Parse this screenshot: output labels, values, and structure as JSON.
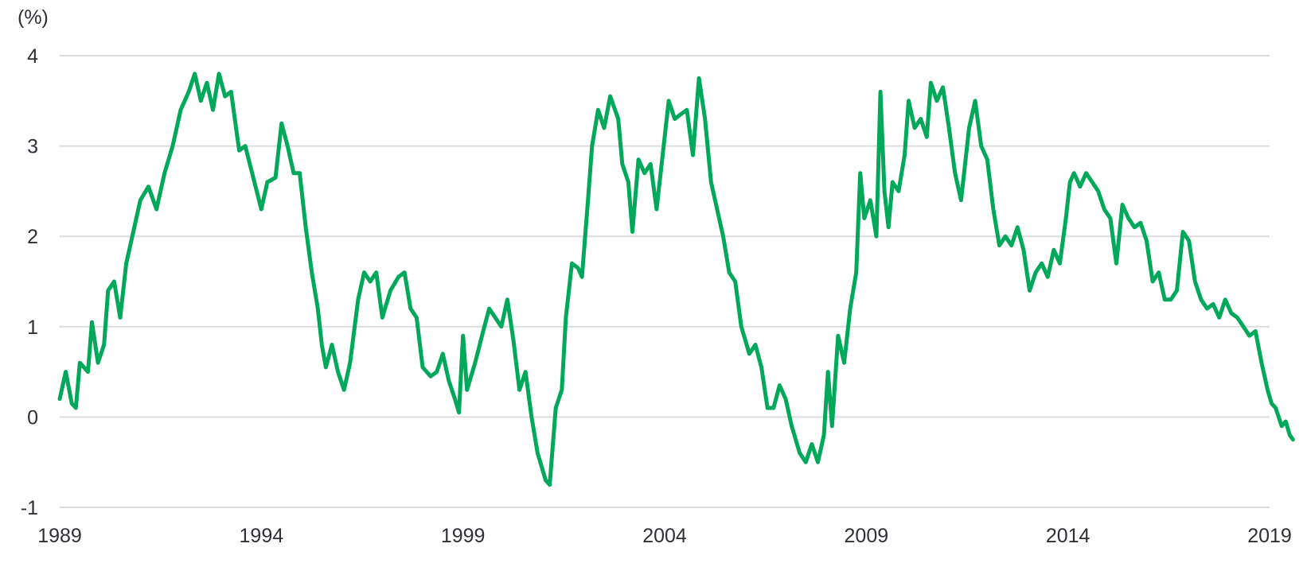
{
  "chart_data": {
    "type": "line",
    "title": "",
    "xlabel": "",
    "ylabel": "(%)",
    "xlim": [
      1989,
      2019
    ],
    "ylim": [
      -1,
      4
    ],
    "x_ticks": [
      1989,
      1994,
      1999,
      2004,
      2009,
      2014,
      2019
    ],
    "x_tick_labels": [
      "1989",
      "1994",
      "1999",
      "2004",
      "2009",
      "2014",
      "2019"
    ],
    "y_ticks": [
      -1,
      0,
      1,
      2,
      3,
      4
    ],
    "y_tick_labels": [
      "-1",
      "0",
      "1",
      "2",
      "3",
      "4"
    ],
    "grid": true,
    "legend": "none",
    "series": [
      {
        "color": "#00a85a",
        "points": [
          [
            1989.0,
            0.2
          ],
          [
            1989.15,
            0.5
          ],
          [
            1989.3,
            0.15
          ],
          [
            1989.4,
            0.1
          ],
          [
            1989.5,
            0.6
          ],
          [
            1989.7,
            0.5
          ],
          [
            1989.8,
            1.05
          ],
          [
            1989.95,
            0.6
          ],
          [
            1990.1,
            0.8
          ],
          [
            1990.2,
            1.4
          ],
          [
            1990.35,
            1.5
          ],
          [
            1990.5,
            1.1
          ],
          [
            1990.65,
            1.7
          ],
          [
            1990.8,
            2.0
          ],
          [
            1991.0,
            2.4
          ],
          [
            1991.2,
            2.55
          ],
          [
            1991.4,
            2.3
          ],
          [
            1991.6,
            2.7
          ],
          [
            1991.8,
            3.0
          ],
          [
            1992.0,
            3.4
          ],
          [
            1992.2,
            3.6
          ],
          [
            1992.35,
            3.8
          ],
          [
            1992.5,
            3.5
          ],
          [
            1992.65,
            3.7
          ],
          [
            1992.8,
            3.4
          ],
          [
            1992.95,
            3.8
          ],
          [
            1993.1,
            3.55
          ],
          [
            1993.25,
            3.6
          ],
          [
            1993.45,
            2.95
          ],
          [
            1993.6,
            3.0
          ],
          [
            1993.8,
            2.65
          ],
          [
            1994.0,
            2.3
          ],
          [
            1994.15,
            2.6
          ],
          [
            1994.35,
            2.65
          ],
          [
            1994.5,
            3.25
          ],
          [
            1994.65,
            3.0
          ],
          [
            1994.8,
            2.7
          ],
          [
            1994.95,
            2.7
          ],
          [
            1995.1,
            2.1
          ],
          [
            1995.25,
            1.6
          ],
          [
            1995.4,
            1.2
          ],
          [
            1995.5,
            0.8
          ],
          [
            1995.6,
            0.55
          ],
          [
            1995.75,
            0.8
          ],
          [
            1995.9,
            0.5
          ],
          [
            1996.05,
            0.3
          ],
          [
            1996.2,
            0.6
          ],
          [
            1996.4,
            1.3
          ],
          [
            1996.55,
            1.6
          ],
          [
            1996.7,
            1.5
          ],
          [
            1996.85,
            1.6
          ],
          [
            1997.0,
            1.1
          ],
          [
            1997.2,
            1.4
          ],
          [
            1997.4,
            1.55
          ],
          [
            1997.55,
            1.6
          ],
          [
            1997.7,
            1.2
          ],
          [
            1997.85,
            1.1
          ],
          [
            1998.0,
            0.55
          ],
          [
            1998.2,
            0.45
          ],
          [
            1998.35,
            0.5
          ],
          [
            1998.5,
            0.7
          ],
          [
            1998.65,
            0.4
          ],
          [
            1998.8,
            0.2
          ],
          [
            1998.9,
            0.05
          ],
          [
            1999.0,
            0.9
          ],
          [
            1999.1,
            0.3
          ],
          [
            1999.3,
            0.6
          ],
          [
            1999.5,
            0.95
          ],
          [
            1999.65,
            1.2
          ],
          [
            1999.8,
            1.1
          ],
          [
            1999.95,
            1.0
          ],
          [
            2000.1,
            1.3
          ],
          [
            2000.25,
            0.85
          ],
          [
            2000.4,
            0.3
          ],
          [
            2000.55,
            0.5
          ],
          [
            2000.7,
            0.0
          ],
          [
            2000.85,
            -0.4
          ],
          [
            2000.95,
            -0.55
          ],
          [
            2001.05,
            -0.7
          ],
          [
            2001.15,
            -0.75
          ],
          [
            2001.3,
            0.1
          ],
          [
            2001.45,
            0.3
          ],
          [
            2001.55,
            1.1
          ],
          [
            2001.7,
            1.7
          ],
          [
            2001.85,
            1.65
          ],
          [
            2001.95,
            1.55
          ],
          [
            2002.1,
            2.4
          ],
          [
            2002.2,
            3.0
          ],
          [
            2002.35,
            3.4
          ],
          [
            2002.5,
            3.2
          ],
          [
            2002.65,
            3.55
          ],
          [
            2002.85,
            3.3
          ],
          [
            2002.95,
            2.8
          ],
          [
            2003.1,
            2.6
          ],
          [
            2003.2,
            2.05
          ],
          [
            2003.35,
            2.85
          ],
          [
            2003.5,
            2.7
          ],
          [
            2003.65,
            2.8
          ],
          [
            2003.8,
            2.3
          ],
          [
            2003.95,
            2.9
          ],
          [
            2004.1,
            3.5
          ],
          [
            2004.25,
            3.3
          ],
          [
            2004.4,
            3.35
          ],
          [
            2004.55,
            3.4
          ],
          [
            2004.7,
            2.9
          ],
          [
            2004.85,
            3.75
          ],
          [
            2005.0,
            3.3
          ],
          [
            2005.15,
            2.6
          ],
          [
            2005.3,
            2.3
          ],
          [
            2005.45,
            2.0
          ],
          [
            2005.6,
            1.6
          ],
          [
            2005.75,
            1.5
          ],
          [
            2005.9,
            1.0
          ],
          [
            2006.1,
            0.7
          ],
          [
            2006.25,
            0.8
          ],
          [
            2006.4,
            0.55
          ],
          [
            2006.55,
            0.1
          ],
          [
            2006.7,
            0.1
          ],
          [
            2006.85,
            0.35
          ],
          [
            2007.0,
            0.2
          ],
          [
            2007.15,
            -0.1
          ],
          [
            2007.35,
            -0.4
          ],
          [
            2007.5,
            -0.5
          ],
          [
            2007.65,
            -0.3
          ],
          [
            2007.8,
            -0.5
          ],
          [
            2007.95,
            -0.2
          ],
          [
            2008.05,
            0.5
          ],
          [
            2008.15,
            -0.1
          ],
          [
            2008.3,
            0.9
          ],
          [
            2008.45,
            0.6
          ],
          [
            2008.6,
            1.2
          ],
          [
            2008.75,
            1.6
          ],
          [
            2008.85,
            2.7
          ],
          [
            2008.95,
            2.2
          ],
          [
            2009.1,
            2.4
          ],
          [
            2009.25,
            2.0
          ],
          [
            2009.35,
            3.6
          ],
          [
            2009.45,
            2.5
          ],
          [
            2009.55,
            2.1
          ],
          [
            2009.65,
            2.6
          ],
          [
            2009.8,
            2.5
          ],
          [
            2009.95,
            2.9
          ],
          [
            2010.05,
            3.5
          ],
          [
            2010.2,
            3.2
          ],
          [
            2010.35,
            3.3
          ],
          [
            2010.5,
            3.1
          ],
          [
            2010.6,
            3.7
          ],
          [
            2010.75,
            3.5
          ],
          [
            2010.9,
            3.65
          ],
          [
            2011.05,
            3.2
          ],
          [
            2011.2,
            2.7
          ],
          [
            2011.35,
            2.4
          ],
          [
            2011.55,
            3.2
          ],
          [
            2011.7,
            3.5
          ],
          [
            2011.85,
            3.0
          ],
          [
            2012.0,
            2.85
          ],
          [
            2012.15,
            2.3
          ],
          [
            2012.3,
            1.9
          ],
          [
            2012.45,
            2.0
          ],
          [
            2012.6,
            1.9
          ],
          [
            2012.75,
            2.1
          ],
          [
            2012.9,
            1.85
          ],
          [
            2013.05,
            1.4
          ],
          [
            2013.2,
            1.6
          ],
          [
            2013.35,
            1.7
          ],
          [
            2013.5,
            1.55
          ],
          [
            2013.65,
            1.85
          ],
          [
            2013.8,
            1.7
          ],
          [
            2013.95,
            2.2
          ],
          [
            2014.05,
            2.6
          ],
          [
            2014.15,
            2.7
          ],
          [
            2014.3,
            2.55
          ],
          [
            2014.45,
            2.7
          ],
          [
            2014.6,
            2.6
          ],
          [
            2014.75,
            2.5
          ],
          [
            2014.9,
            2.3
          ],
          [
            2015.05,
            2.2
          ],
          [
            2015.2,
            1.7
          ],
          [
            2015.35,
            2.35
          ],
          [
            2015.5,
            2.2
          ],
          [
            2015.65,
            2.1
          ],
          [
            2015.8,
            2.15
          ],
          [
            2015.95,
            1.95
          ],
          [
            2016.1,
            1.5
          ],
          [
            2016.25,
            1.6
          ],
          [
            2016.4,
            1.3
          ],
          [
            2016.55,
            1.3
          ],
          [
            2016.7,
            1.4
          ],
          [
            2016.85,
            2.05
          ],
          [
            2017.0,
            1.95
          ],
          [
            2017.15,
            1.5
          ],
          [
            2017.3,
            1.3
          ],
          [
            2017.45,
            1.2
          ],
          [
            2017.6,
            1.25
          ],
          [
            2017.75,
            1.1
          ],
          [
            2017.9,
            1.3
          ],
          [
            2018.05,
            1.15
          ],
          [
            2018.2,
            1.1
          ],
          [
            2018.35,
            1.0
          ],
          [
            2018.5,
            0.9
          ],
          [
            2018.65,
            0.95
          ],
          [
            2018.8,
            0.6
          ],
          [
            2018.95,
            0.3
          ],
          [
            2019.05,
            0.15
          ],
          [
            2019.15,
            0.1
          ],
          [
            2019.3,
            -0.1
          ],
          [
            2019.4,
            -0.05
          ],
          [
            2019.5,
            -0.2
          ],
          [
            2019.58,
            -0.25
          ]
        ]
      }
    ]
  }
}
